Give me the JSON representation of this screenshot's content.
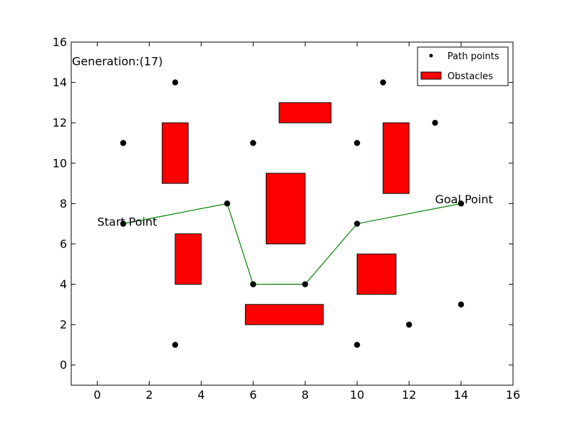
{
  "chart_data": {
    "type": "scatter",
    "title": "",
    "xlabel": "",
    "ylabel": "",
    "xlim": [
      -1,
      16
    ],
    "ylim": [
      -1,
      16
    ],
    "xticks": [
      0,
      2,
      4,
      6,
      8,
      10,
      12,
      14,
      16
    ],
    "yticks": [
      0,
      2,
      4,
      6,
      8,
      10,
      12,
      14,
      16
    ],
    "grid": false,
    "legend_position": "top-right",
    "legend": [
      {
        "label": "Path points",
        "kind": "point"
      },
      {
        "label": "Obstacles",
        "kind": "patch"
      }
    ],
    "colors": {
      "points": "#000000",
      "obstacle_fill": "#ff0000",
      "path": "#008000"
    },
    "points": [
      {
        "x": 1,
        "y": 7
      },
      {
        "x": 1,
        "y": 11
      },
      {
        "x": 3,
        "y": 1
      },
      {
        "x": 3,
        "y": 14
      },
      {
        "x": 5,
        "y": 8
      },
      {
        "x": 6,
        "y": 4
      },
      {
        "x": 6,
        "y": 11
      },
      {
        "x": 8,
        "y": 4
      },
      {
        "x": 10,
        "y": 1
      },
      {
        "x": 10,
        "y": 7
      },
      {
        "x": 10,
        "y": 11
      },
      {
        "x": 11,
        "y": 14
      },
      {
        "x": 12,
        "y": 2
      },
      {
        "x": 13,
        "y": 12
      },
      {
        "x": 14,
        "y": 3
      },
      {
        "x": 14,
        "y": 8
      }
    ],
    "obstacles": [
      {
        "x0": 2.5,
        "x1": 3.5,
        "y0": 9,
        "y1": 12
      },
      {
        "x0": 3,
        "x1": 4,
        "y0": 4,
        "y1": 6.5
      },
      {
        "x0": 7,
        "x1": 9,
        "y0": 12,
        "y1": 13
      },
      {
        "x0": 6.5,
        "x1": 8,
        "y0": 6,
        "y1": 9.5
      },
      {
        "x0": 5.7,
        "x1": 8.7,
        "y0": 2,
        "y1": 3
      },
      {
        "x0": 11,
        "x1": 12,
        "y0": 8.5,
        "y1": 12
      },
      {
        "x0": 10,
        "x1": 11.5,
        "y0": 3.5,
        "y1": 5.5
      }
    ],
    "path": [
      {
        "x": 1,
        "y": 7
      },
      {
        "x": 5,
        "y": 8
      },
      {
        "x": 6,
        "y": 4
      },
      {
        "x": 8,
        "y": 4
      },
      {
        "x": 10,
        "y": 7
      },
      {
        "x": 14,
        "y": 8
      }
    ],
    "annotations": [
      {
        "text": "Generation:(17)",
        "x": -1,
        "y": 15.05,
        "anchor": "start"
      },
      {
        "text": "Start Point",
        "x": 0,
        "y": 7.1,
        "anchor": "start"
      },
      {
        "text": "Goal Point",
        "x": 13,
        "y": 8.2,
        "anchor": "start"
      }
    ]
  }
}
